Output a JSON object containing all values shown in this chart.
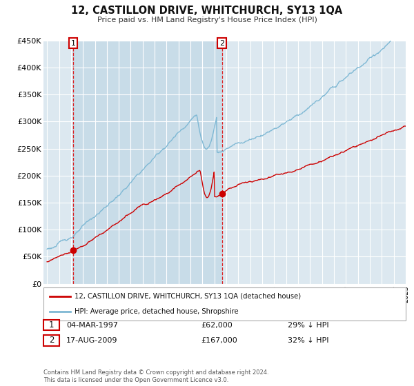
{
  "title": "12, CASTILLON DRIVE, WHITCHURCH, SY13 1QA",
  "subtitle": "Price paid vs. HM Land Registry's House Price Index (HPI)",
  "ylim": [
    0,
    450000
  ],
  "xlim_start": 1995,
  "xlim_end": 2025,
  "yticks": [
    0,
    50000,
    100000,
    150000,
    200000,
    250000,
    300000,
    350000,
    400000,
    450000
  ],
  "ytick_labels": [
    "£0",
    "£50K",
    "£100K",
    "£150K",
    "£200K",
    "£250K",
    "£300K",
    "£350K",
    "£400K",
    "£450K"
  ],
  "sale1_x": 1997.18,
  "sale1_y": 62000,
  "sale2_x": 2009.63,
  "sale2_y": 167000,
  "sale1_label": "04-MAR-1997",
  "sale1_price": "£62,000",
  "sale1_hpi": "29% ↓ HPI",
  "sale2_label": "17-AUG-2009",
  "sale2_price": "£167,000",
  "sale2_hpi": "32% ↓ HPI",
  "legend_line1": "12, CASTILLON DRIVE, WHITCHURCH, SY13 1QA (detached house)",
  "legend_line2": "HPI: Average price, detached house, Shropshire",
  "footer": "Contains HM Land Registry data © Crown copyright and database right 2024.\nThis data is licensed under the Open Government Licence v3.0.",
  "hpi_color": "#7eb8d4",
  "price_color": "#cc0000",
  "plot_bg": "#dce8f0",
  "grid_color": "#ffffff",
  "fig_bg": "#ffffff",
  "shade_color": "#c8dce8"
}
